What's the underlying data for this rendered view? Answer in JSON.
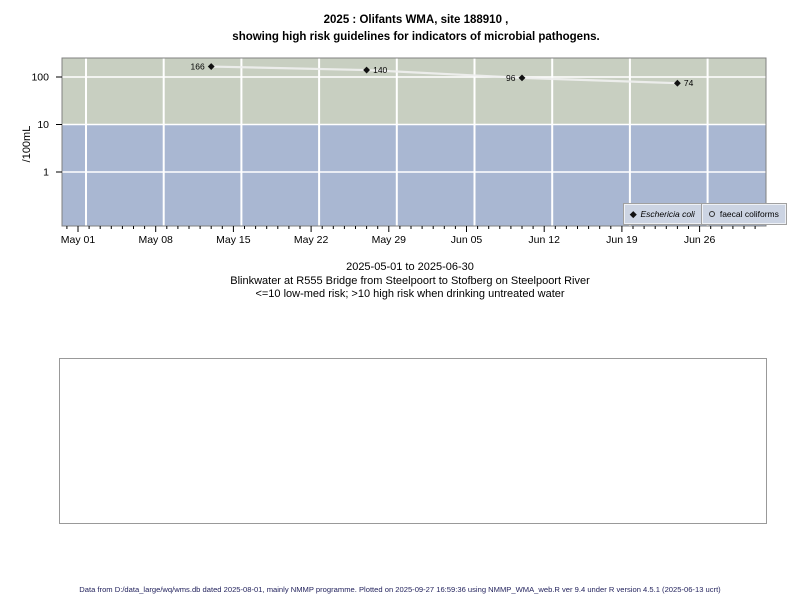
{
  "title": {
    "line1": "2025 : Olifants WMA, site 188910 ,",
    "line2": "showing high risk guidelines for indicators of microbial pathogens."
  },
  "chart_data": {
    "type": "scatter",
    "log_y": true,
    "ylabel": "/100mL",
    "x_axis": {
      "start_date": "2025-05-01",
      "end_date": "2025-06-30",
      "tick_labels": [
        "May 01",
        "May 08",
        "May 15",
        "May 22",
        "May 29",
        "Jun 05",
        "Jun 12",
        "Jun 19",
        "Jun 26"
      ],
      "tick_interval_days": 7,
      "minor_tick_interval_days": 1
    },
    "y_axis": {
      "ticks": [
        100,
        10,
        1
      ],
      "tick_labels": [
        "100",
        "10",
        "1"
      ],
      "range_approx": [
        0.07,
        250
      ]
    },
    "risk_bands": [
      {
        "name": "high risk",
        "rule": ">10",
        "color": "#c8cfc1",
        "from": 10,
        "to": 250
      },
      {
        "name": "low-med risk",
        "rule": "<=10",
        "color": "#a9b7d2",
        "from": 0.07,
        "to": 10
      }
    ],
    "series": [
      {
        "name": "Eschericia coli",
        "marker": "filled-diamond",
        "points": [
          {
            "date": "2025-05-13",
            "value": 166,
            "label": "166",
            "label_side": "left"
          },
          {
            "date": "2025-05-27",
            "value": 140,
            "label": "140",
            "label_side": "right"
          },
          {
            "date": "2025-06-10",
            "value": 96,
            "label": "96",
            "label_side": "left"
          },
          {
            "date": "2025-06-24",
            "value": 74,
            "label": "74",
            "label_side": "right"
          }
        ]
      },
      {
        "name": "faecal coliforms",
        "marker": "open-circle",
        "points": []
      }
    ],
    "colors": {
      "grid": "#ffffff",
      "marker": "#111111",
      "connect_line": "#f0f0f0",
      "plot_border": "#808080",
      "legend_fill": "#ccd4e3"
    }
  },
  "legend": {
    "items": [
      {
        "label": "Eschericia coli",
        "marker": "filled-diamond"
      },
      {
        "label": "faecal coliforms",
        "marker": "open-circle"
      }
    ]
  },
  "captions": {
    "date_range": "2025-05-01 to 2025-06-30",
    "site": "Blinkwater at R555 Bridge from Steelpoort to Stofberg on Steelpoort River",
    "risk": "<=10 low-med risk; >10 high risk when drinking untreated water"
  },
  "footer": {
    "text": "Data from D:/data_large/wq/wms.db dated 2025-08-01, mainly NMMP programme. Plotted on 2025-09-27 16:59:36 using NMMP_WMA_web.R ver 9.4 under R version 4.5.1 (2025-06-13 ucrt)"
  }
}
